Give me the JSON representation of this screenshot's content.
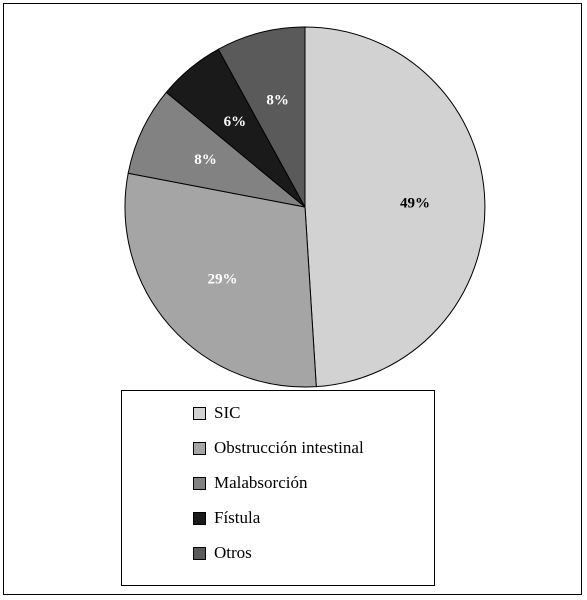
{
  "chart_data": {
    "type": "pie",
    "slices": [
      {
        "name": "SIC",
        "value": 49,
        "label": "49%",
        "color": "#d2d2d2",
        "label_color": "#000000"
      },
      {
        "name": "Obstrucción intestinal",
        "value": 29,
        "label": "29%",
        "color": "#a5a5a5",
        "label_color": "#ffffff"
      },
      {
        "name": "Malabsorción",
        "value": 8,
        "label": "8%",
        "color": "#828282",
        "label_color": "#ffffff"
      },
      {
        "name": "Fístula",
        "value": 6,
        "label": "6%",
        "color": "#1a1a1a",
        "label_color": "#ffffff"
      },
      {
        "name": "Otros",
        "value": 8,
        "label": "8%",
        "color": "#5a5a5a",
        "label_color": "#ffffff"
      }
    ],
    "start": "12 o'clock",
    "direction": "clockwise",
    "legend_position": "bottom"
  }
}
